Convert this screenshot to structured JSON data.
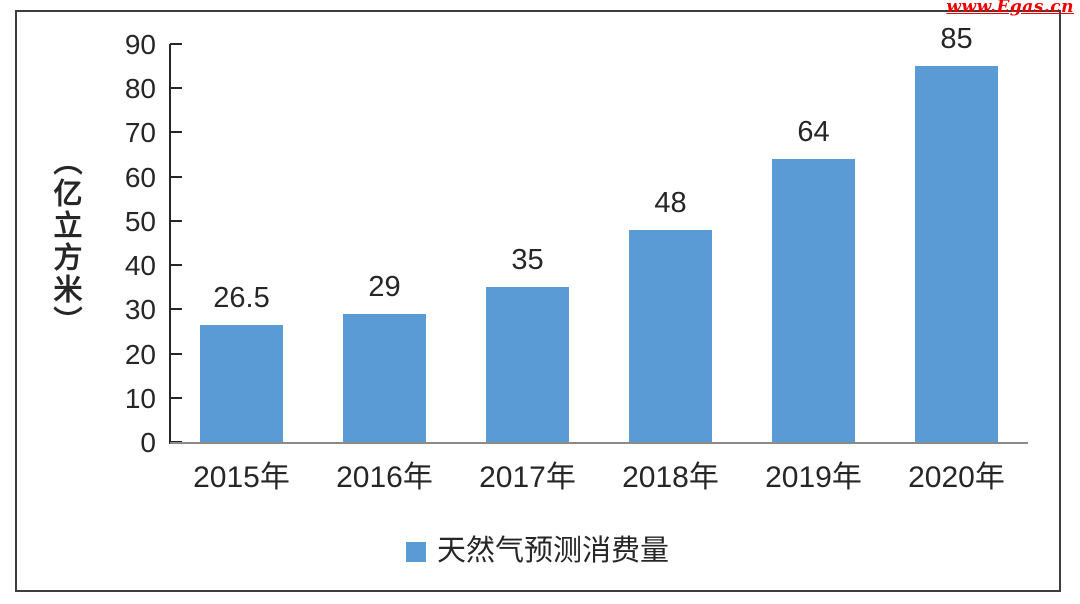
{
  "watermark": "www.Egas.cn",
  "colors": {
    "bar": "#5B9BD5",
    "axis": "#262626",
    "baseline": "#8A8A8A",
    "text": "#262626",
    "border": "#3D3D3D",
    "watermark": "#EE0000",
    "background": "#FFFFFF"
  },
  "legend": {
    "label": "天然气预测消费量",
    "marker_color": "#5B9BD5"
  },
  "chart_data": {
    "type": "bar",
    "title": "",
    "categories": [
      "2015年",
      "2016年",
      "2017年",
      "2018年",
      "2019年",
      "2020年"
    ],
    "values": [
      26.5,
      29,
      35,
      48,
      64,
      85
    ],
    "data_labels": [
      "26.5",
      "29",
      "35",
      "48",
      "64",
      "85"
    ],
    "series_name": "天然气预测消费量",
    "xlabel": "",
    "ylabel": "（亿立方米）",
    "ylim": [
      0,
      90
    ],
    "yticks": [
      0,
      10,
      20,
      30,
      40,
      50,
      60,
      70,
      80,
      90
    ],
    "grid": false,
    "legend_position": "bottom"
  }
}
